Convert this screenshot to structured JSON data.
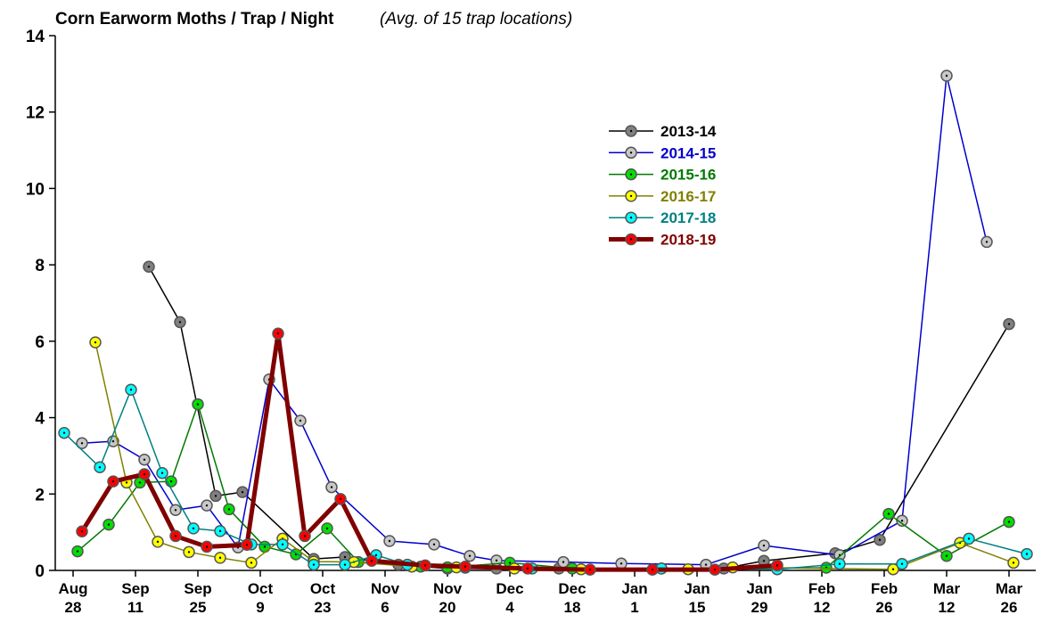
{
  "chart_data": {
    "type": "line",
    "title": "Corn Earworm Moths / Trap / Night",
    "subtitle": "(Avg. of 15 trap locations)",
    "xlim": [
      -4,
      216
    ],
    "ylim": [
      0,
      14
    ],
    "xticks": [
      {
        "value": 0,
        "label": "Aug 28"
      },
      {
        "value": 14,
        "label": "Sep 11"
      },
      {
        "value": 28,
        "label": "Sep 25"
      },
      {
        "value": 42,
        "label": "Oct 9"
      },
      {
        "value": 56,
        "label": "Oct 23"
      },
      {
        "value": 70,
        "label": "Nov 6"
      },
      {
        "value": 84,
        "label": "Nov 20"
      },
      {
        "value": 98,
        "label": "Dec 4"
      },
      {
        "value": 112,
        "label": "Dec 18"
      },
      {
        "value": 126,
        "label": "Jan 1"
      },
      {
        "value": 140,
        "label": "Jan 15"
      },
      {
        "value": 154,
        "label": "Jan 29"
      },
      {
        "value": 168,
        "label": "Feb 12"
      },
      {
        "value": 182,
        "label": "Feb 26"
      },
      {
        "value": 196,
        "label": "Mar 12"
      },
      {
        "value": 210,
        "label": "Mar 26"
      }
    ],
    "yticks": [
      0,
      2,
      4,
      6,
      8,
      10,
      12,
      14
    ],
    "grid": false,
    "legend": "upper center",
    "series": [
      {
        "name": "2013-14",
        "color": "#808080",
        "line_color": "#000000",
        "label_color": "#000000",
        "line_width": 1.5,
        "x": [
          17,
          24,
          32,
          38,
          54,
          61,
          73,
          84,
          95,
          109,
          132,
          146,
          155,
          171,
          181,
          210
        ],
        "values": [
          7.95,
          6.5,
          1.95,
          2.05,
          0.3,
          0.35,
          0.15,
          0.05,
          0.05,
          0.05,
          0.05,
          0.05,
          0.25,
          0.45,
          0.8,
          6.45
        ]
      },
      {
        "name": "2014-15",
        "color": "#c8c8c8",
        "line_color": "#0000cc",
        "label_color": "#0000cc",
        "line_width": 1.5,
        "x": [
          2,
          9,
          16,
          23,
          30,
          37,
          44,
          51,
          58,
          71,
          81,
          89,
          95,
          110,
          123,
          142,
          155,
          172,
          186,
          196,
          205
        ],
        "values": [
          3.33,
          3.38,
          2.9,
          1.58,
          1.7,
          0.6,
          5.0,
          3.92,
          2.18,
          0.77,
          0.68,
          0.38,
          0.26,
          0.22,
          0.18,
          0.15,
          0.65,
          0.4,
          1.3,
          12.95,
          8.6
        ]
      },
      {
        "name": "2015-16",
        "color": "#00e000",
        "line_color": "#007a00",
        "label_color": "#007a00",
        "line_width": 1.5,
        "x": [
          1,
          8,
          15,
          22,
          28,
          35,
          43,
          50,
          57,
          64,
          78,
          84,
          98,
          112,
          169,
          183,
          196,
          210
        ],
        "values": [
          0.5,
          1.2,
          2.3,
          2.33,
          4.35,
          1.6,
          0.62,
          0.42,
          1.1,
          0.22,
          0.1,
          0.08,
          0.2,
          0.05,
          0.07,
          1.48,
          0.38,
          1.27
        ]
      },
      {
        "name": "2016-17",
        "color": "#ffff00",
        "line_color": "#808000",
        "label_color": "#808000",
        "line_width": 1.5,
        "x": [
          5,
          12,
          19,
          26,
          33,
          40,
          47,
          54,
          63,
          76,
          86,
          99,
          114,
          138,
          148,
          184,
          199,
          211
        ],
        "values": [
          5.97,
          2.3,
          0.75,
          0.48,
          0.33,
          0.2,
          0.83,
          0.23,
          0.22,
          0.1,
          0.08,
          0.05,
          0.03,
          0.03,
          0.08,
          0.03,
          0.72,
          0.2
        ]
      },
      {
        "name": "2017-18",
        "color": "#00ffff",
        "line_color": "#008080",
        "label_color": "#008080",
        "line_width": 1.5,
        "x": [
          -2,
          6,
          13,
          20,
          27,
          33,
          40,
          47,
          54,
          61,
          68,
          75,
          88,
          103,
          132,
          158,
          172,
          186,
          201,
          214
        ],
        "values": [
          3.6,
          2.7,
          4.73,
          2.55,
          1.1,
          1.03,
          0.68,
          0.68,
          0.15,
          0.15,
          0.4,
          0.15,
          0.07,
          0.05,
          0.05,
          0.03,
          0.17,
          0.17,
          0.83,
          0.43
        ]
      },
      {
        "name": "2018-19",
        "color": "#ff0000",
        "line_color": "#800000",
        "label_color": "#800000",
        "line_width": 5,
        "x": [
          2,
          9,
          16,
          23,
          30,
          39,
          46,
          52,
          60,
          67,
          79,
          88,
          102,
          116,
          130,
          144,
          158
        ],
        "values": [
          1.02,
          2.33,
          2.52,
          0.9,
          0.62,
          0.67,
          6.2,
          0.9,
          1.87,
          0.25,
          0.13,
          0.1,
          0.05,
          0.02,
          0.02,
          0.02,
          0.13
        ]
      }
    ]
  }
}
